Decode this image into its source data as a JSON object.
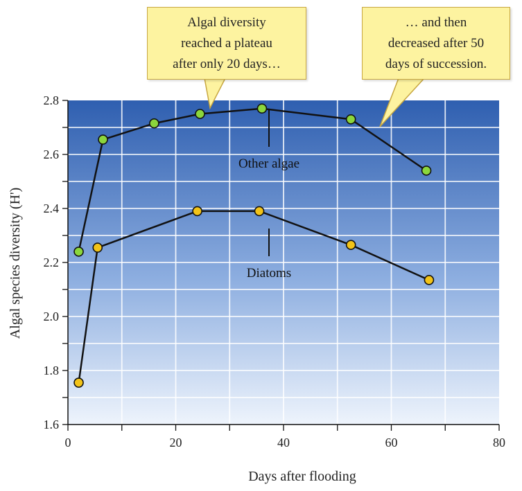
{
  "chart_data": {
    "type": "line",
    "title": "",
    "xlabel": "Days after flooding",
    "ylabel": "Algal species diversity (H')",
    "xlim": [
      0,
      80
    ],
    "ylim": [
      1.6,
      2.8
    ],
    "xticks": [
      "0",
      "20",
      "40",
      "60",
      "80"
    ],
    "yticks": [
      "1.6",
      "1.8",
      "2.0",
      "2.2",
      "2.4",
      "2.6",
      "2.8"
    ],
    "grid": true,
    "series": [
      {
        "name": "Other algae",
        "color": "#8bd63c",
        "points": [
          {
            "x": 2,
            "y": 2.24
          },
          {
            "x": 6.5,
            "y": 2.655
          },
          {
            "x": 16,
            "y": 2.715
          },
          {
            "x": 24.5,
            "y": 2.75
          },
          {
            "x": 36,
            "y": 2.77
          },
          {
            "x": 52.5,
            "y": 2.73
          },
          {
            "x": 66.5,
            "y": 2.54
          }
        ]
      },
      {
        "name": "Diatoms",
        "color": "#f2c318",
        "points": [
          {
            "x": 2,
            "y": 1.755
          },
          {
            "x": 5.5,
            "y": 2.255
          },
          {
            "x": 24,
            "y": 2.39
          },
          {
            "x": 35.5,
            "y": 2.39
          },
          {
            "x": 52.5,
            "y": 2.265
          },
          {
            "x": 67,
            "y": 2.135
          }
        ]
      }
    ],
    "annotations": {
      "plateau": [
        "Algal diversity",
        "reached a plateau",
        "after only 20 days…"
      ],
      "decrease": [
        "… and then",
        "decreased after 50",
        "days of succession."
      ]
    }
  }
}
